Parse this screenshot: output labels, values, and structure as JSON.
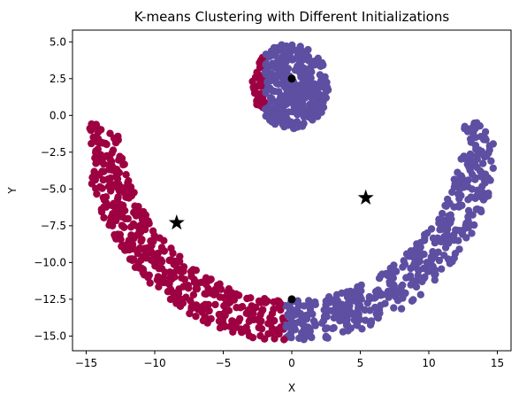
{
  "chart_data": {
    "type": "scatter",
    "title": "K-means Clustering with Different Initializations",
    "xlabel": "X",
    "ylabel": "Y",
    "xlim": [
      -16,
      16
    ],
    "ylim": [
      -16,
      5.8
    ],
    "xticks": [
      -15,
      -10,
      -5,
      0,
      5,
      10,
      15
    ],
    "yticks": [
      5.0,
      2.5,
      0.0,
      -2.5,
      -5.0,
      -7.5,
      -10.0,
      -12.5,
      -15.0
    ],
    "ytick_labels": [
      "5.0",
      "2.5",
      "0.0",
      "−2.5",
      "−5.0",
      "−7.5",
      "−10.0",
      "−12.5",
      "−15.0"
    ],
    "xtick_labels": [
      "−15",
      "−10",
      "−5",
      "0",
      "5",
      "10",
      "15"
    ],
    "grid": false,
    "series_colors": {
      "crimson": "#9e0142",
      "purple": "#5e4fa2"
    },
    "shapes": {
      "circle": {
        "cx": 0,
        "cy": 2,
        "r": 2.9,
        "split_x": -2.0
      },
      "arc": {
        "cx": 0,
        "cy": 0,
        "r_inner": 12.6,
        "r_outer": 15.4,
        "split_x": -0.5,
        "y_top": -0.5
      }
    },
    "centroids_circle": [
      {
        "x": 0.0,
        "y": 2.5
      },
      {
        "x": 0.0,
        "y": -12.5
      }
    ],
    "centroids_star": [
      {
        "x": -8.4,
        "y": -7.3
      },
      {
        "x": 5.4,
        "y": -5.6
      }
    ],
    "point_count": {
      "circle": 380,
      "arc": 900
    }
  }
}
